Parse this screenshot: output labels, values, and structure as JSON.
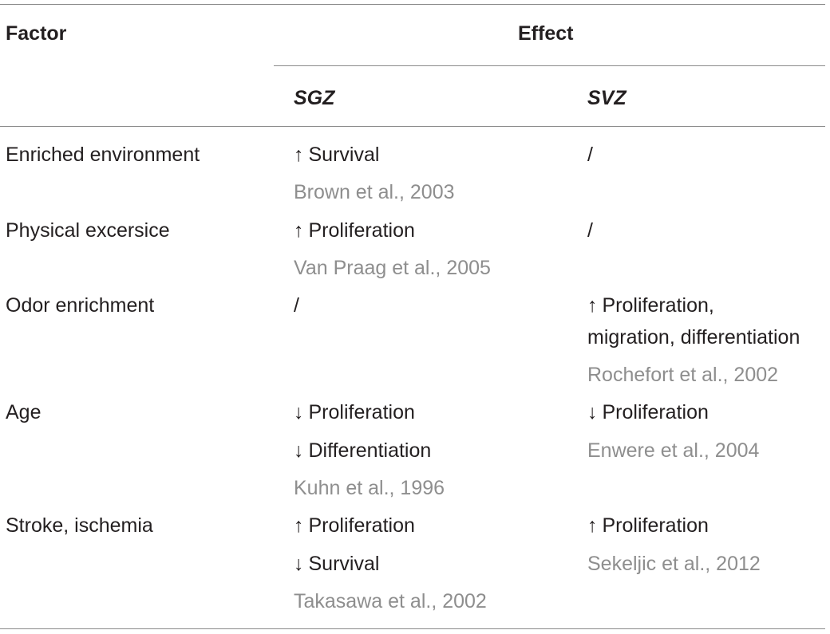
{
  "header": {
    "factor": "Factor",
    "effect": "Effect",
    "sgz": "SGZ",
    "svz": "SVZ"
  },
  "rows": [
    {
      "factor": "Enriched environment",
      "sgz": [
        {
          "arrow": "↑",
          "text": "Survival"
        }
      ],
      "sgz_ref": "Brown et al., 2003",
      "svz": [
        {
          "arrow": "",
          "text": "/"
        }
      ],
      "svz_ref": ""
    },
    {
      "factor": "Physical excersice",
      "sgz": [
        {
          "arrow": "↑",
          "text": "Proliferation"
        }
      ],
      "sgz_ref": "Van Praag et al., 2005",
      "svz": [
        {
          "arrow": "",
          "text": "/"
        }
      ],
      "svz_ref": ""
    },
    {
      "factor": "Odor enrichment",
      "sgz": [
        {
          "arrow": "",
          "text": "/"
        }
      ],
      "sgz_ref": "",
      "svz": [
        {
          "arrow": "↑",
          "text": "Proliferation,"
        },
        {
          "arrow": "",
          "text": "migration, differentiation"
        }
      ],
      "svz_ref": "Rochefort et al., 2002"
    },
    {
      "factor": "Age",
      "sgz": [
        {
          "arrow": "↓",
          "text": "Proliferation"
        },
        {
          "arrow": "↓",
          "text": "Differentiation"
        }
      ],
      "sgz_ref": "Kuhn et al., 1996",
      "svz": [
        {
          "arrow": "↓",
          "text": "Proliferation"
        }
      ],
      "svz_ref": "Enwere et al., 2004"
    },
    {
      "factor": "Stroke, ischemia",
      "sgz": [
        {
          "arrow": "↑",
          "text": "Proliferation"
        },
        {
          "arrow": "↓",
          "text": "Survival"
        }
      ],
      "sgz_ref": "Takasawa et al., 2002",
      "svz": [
        {
          "arrow": "↑",
          "text": "Proliferation"
        }
      ],
      "svz_ref": "Sekeljic et al., 2012"
    }
  ]
}
